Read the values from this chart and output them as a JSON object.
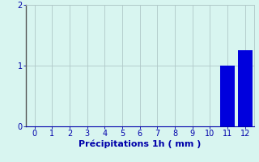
{
  "categories": [
    0,
    1,
    2,
    3,
    4,
    5,
    6,
    7,
    8,
    9,
    10,
    11,
    12
  ],
  "values": [
    0,
    0,
    0,
    0,
    0,
    0,
    0,
    0,
    0,
    0,
    0,
    1.0,
    1.25
  ],
  "bar_color": "#0000dd",
  "background_color": "#d8f5f0",
  "grid_color": "#b0c8c8",
  "axis_color": "#0000aa",
  "left_spine_color": "#555555",
  "bottom_spine_color": "#0000aa",
  "xlabel": "Précipitations 1h ( mm )",
  "xlim": [
    -0.5,
    12.5
  ],
  "ylim": [
    0,
    2.0
  ],
  "yticks": [
    0,
    1,
    2
  ],
  "xticks": [
    0,
    1,
    2,
    3,
    4,
    5,
    6,
    7,
    8,
    9,
    10,
    11,
    12
  ],
  "tick_fontsize": 7,
  "xlabel_fontsize": 8,
  "bar_width": 0.85
}
